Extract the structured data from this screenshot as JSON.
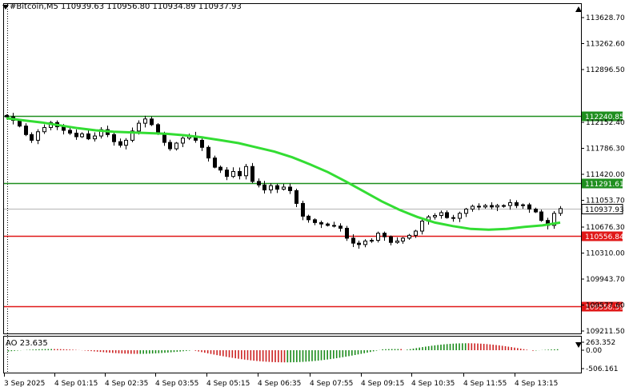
{
  "header": {
    "symbol_line": "#Bitcoin,M5  110939.63 110956.80 110934.89 110937.93"
  },
  "price_axis": {
    "ticks": [
      "113628.70",
      "113262.60",
      "112896.50",
      "112152.40",
      "111786.30",
      "111420.00",
      "111053.70",
      "110676.30",
      "110310.00",
      "109943.70",
      "109577.60",
      "109211.50"
    ],
    "tick_values": [
      113628.7,
      113262.6,
      112896.5,
      112152.4,
      111786.3,
      111420.0,
      111053.7,
      110676.3,
      110310.0,
      109943.7,
      109577.6,
      109211.5
    ]
  },
  "levels": [
    {
      "value": 112240.85,
      "label": "112240.85",
      "color": "#1f8f1f"
    },
    {
      "value": 111291.61,
      "label": "111291.61",
      "color": "#1f8f1f"
    },
    {
      "value": 110556.84,
      "label": "110556.84",
      "color": "#e01818"
    },
    {
      "value": 109558.59,
      "label": "109558.59",
      "color": "#e01818"
    }
  ],
  "current_price": {
    "value": 110937.93,
    "label": "110937.93"
  },
  "ao_panel": {
    "label": "AO 23.635",
    "ticks": [
      "263.352",
      "0.00",
      "-506.161"
    ]
  },
  "time_axis": {
    "labels": [
      "3 Sep 2025",
      "4 Sep 01:15",
      "4 Sep 02:35",
      "4 Sep 03:55",
      "4 Sep 05:15",
      "4 Sep 06:35",
      "4 Sep 07:55",
      "4 Sep 09:15",
      "4 Sep 10:35",
      "4 Sep 11:55",
      "4 Sep 13:15"
    ]
  },
  "colors": {
    "ma": "#33dd33",
    "ao_up": "#1a8a1a",
    "ao_down": "#cc2222",
    "candles": "#000000"
  },
  "chart_data": {
    "type": "candlestick",
    "title": "#Bitcoin,M5",
    "close_path": [
      112230,
      112180,
      112100,
      111980,
      111900,
      112020,
      112080,
      112150,
      112090,
      112040,
      112000,
      111950,
      111990,
      111920,
      111960,
      112050,
      111980,
      111880,
      111830,
      111900,
      112030,
      112140,
      112200,
      112120,
      111990,
      111870,
      111780,
      111860,
      111930,
      111960,
      111900,
      111800,
      111650,
      111520,
      111480,
      111390,
      111460,
      111400,
      111530,
      111320,
      111270,
      111200,
      111260,
      111210,
      111240,
      111190,
      111010,
      110830,
      110780,
      110740,
      110720,
      110700,
      110690,
      110660,
      110520,
      110450,
      110430,
      110480,
      110490,
      110590,
      110540,
      110460,
      110480,
      110520,
      110560,
      110620,
      110760,
      110820,
      110840,
      110880,
      110810,
      110800,
      110870,
      110930,
      110970,
      110960,
      110980,
      110960,
      110980,
      110980,
      111020,
      110980,
      110990,
      110930,
      110890,
      110770,
      110700,
      110870,
      110937
    ],
    "moving_average": [
      112210,
      112180,
      112150,
      112110,
      112070,
      112040,
      112020,
      112010,
      112000,
      111990,
      111970,
      111940,
      111900,
      111860,
      111800,
      111740,
      111660,
      111560,
      111450,
      111320,
      111180,
      111040,
      110920,
      110820,
      110740,
      110690,
      110650,
      110640,
      110650,
      110680,
      110700,
      110740
    ]
  }
}
